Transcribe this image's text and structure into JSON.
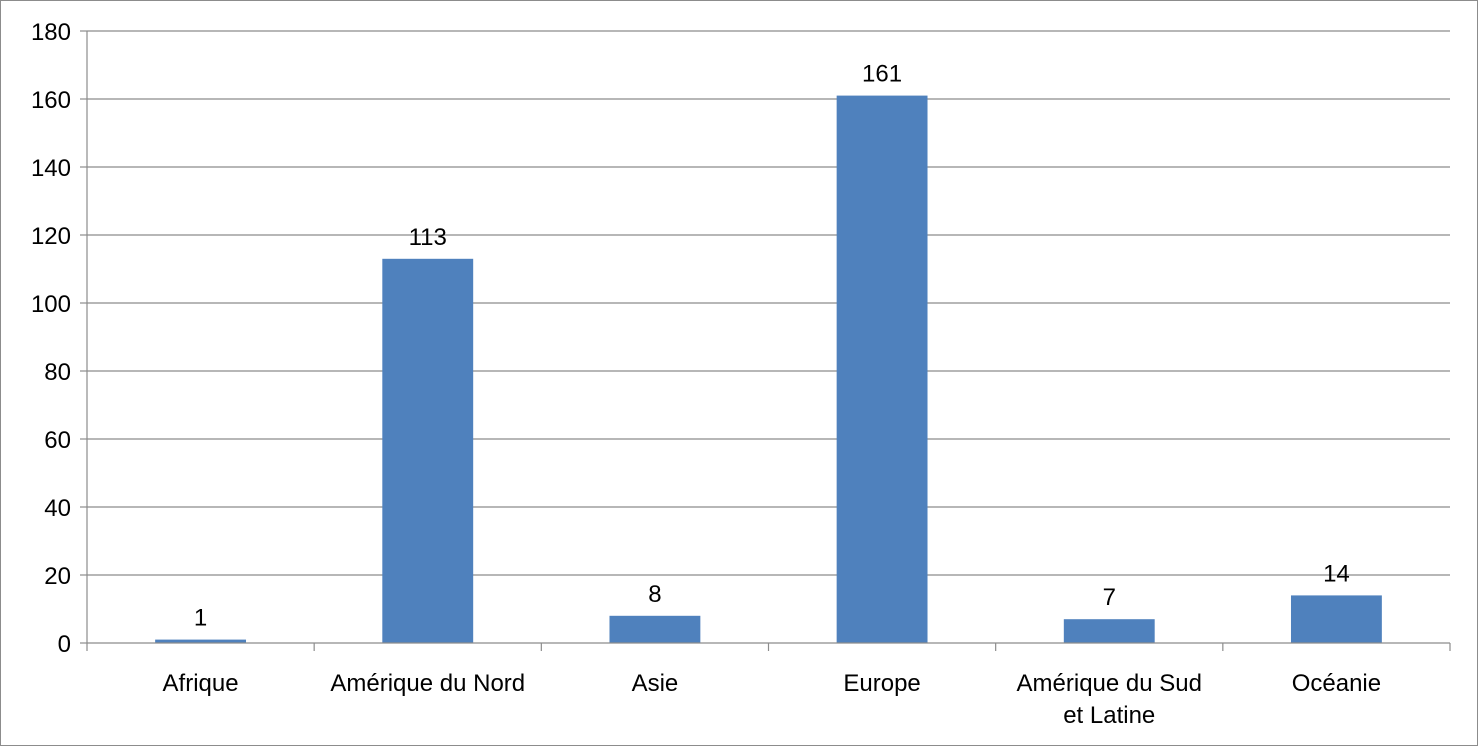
{
  "chart_data": {
    "type": "bar",
    "categories": [
      "Afrique",
      "Amérique du Nord",
      "Asie",
      "Europe",
      "Amérique du Sud et Latine",
      "Océanie"
    ],
    "category_lines": [
      [
        "Afrique"
      ],
      [
        "Amérique du Nord"
      ],
      [
        "Asie"
      ],
      [
        "Europe"
      ],
      [
        "Amérique du Sud",
        "et Latine"
      ],
      [
        "Océanie"
      ]
    ],
    "values": [
      1,
      113,
      8,
      161,
      7,
      14
    ],
    "data_labels": [
      "1",
      "113",
      "8",
      "161",
      "7",
      "14"
    ],
    "title": "",
    "xlabel": "",
    "ylabel": "",
    "ylim": [
      0,
      180
    ],
    "yticks": [
      0,
      20,
      40,
      60,
      80,
      100,
      120,
      140,
      160,
      180
    ],
    "grid": true,
    "legend": "none",
    "colors": {
      "bar": "#4f81bd",
      "grid": "#8c8c8c",
      "axis": "#8c8c8c"
    }
  }
}
